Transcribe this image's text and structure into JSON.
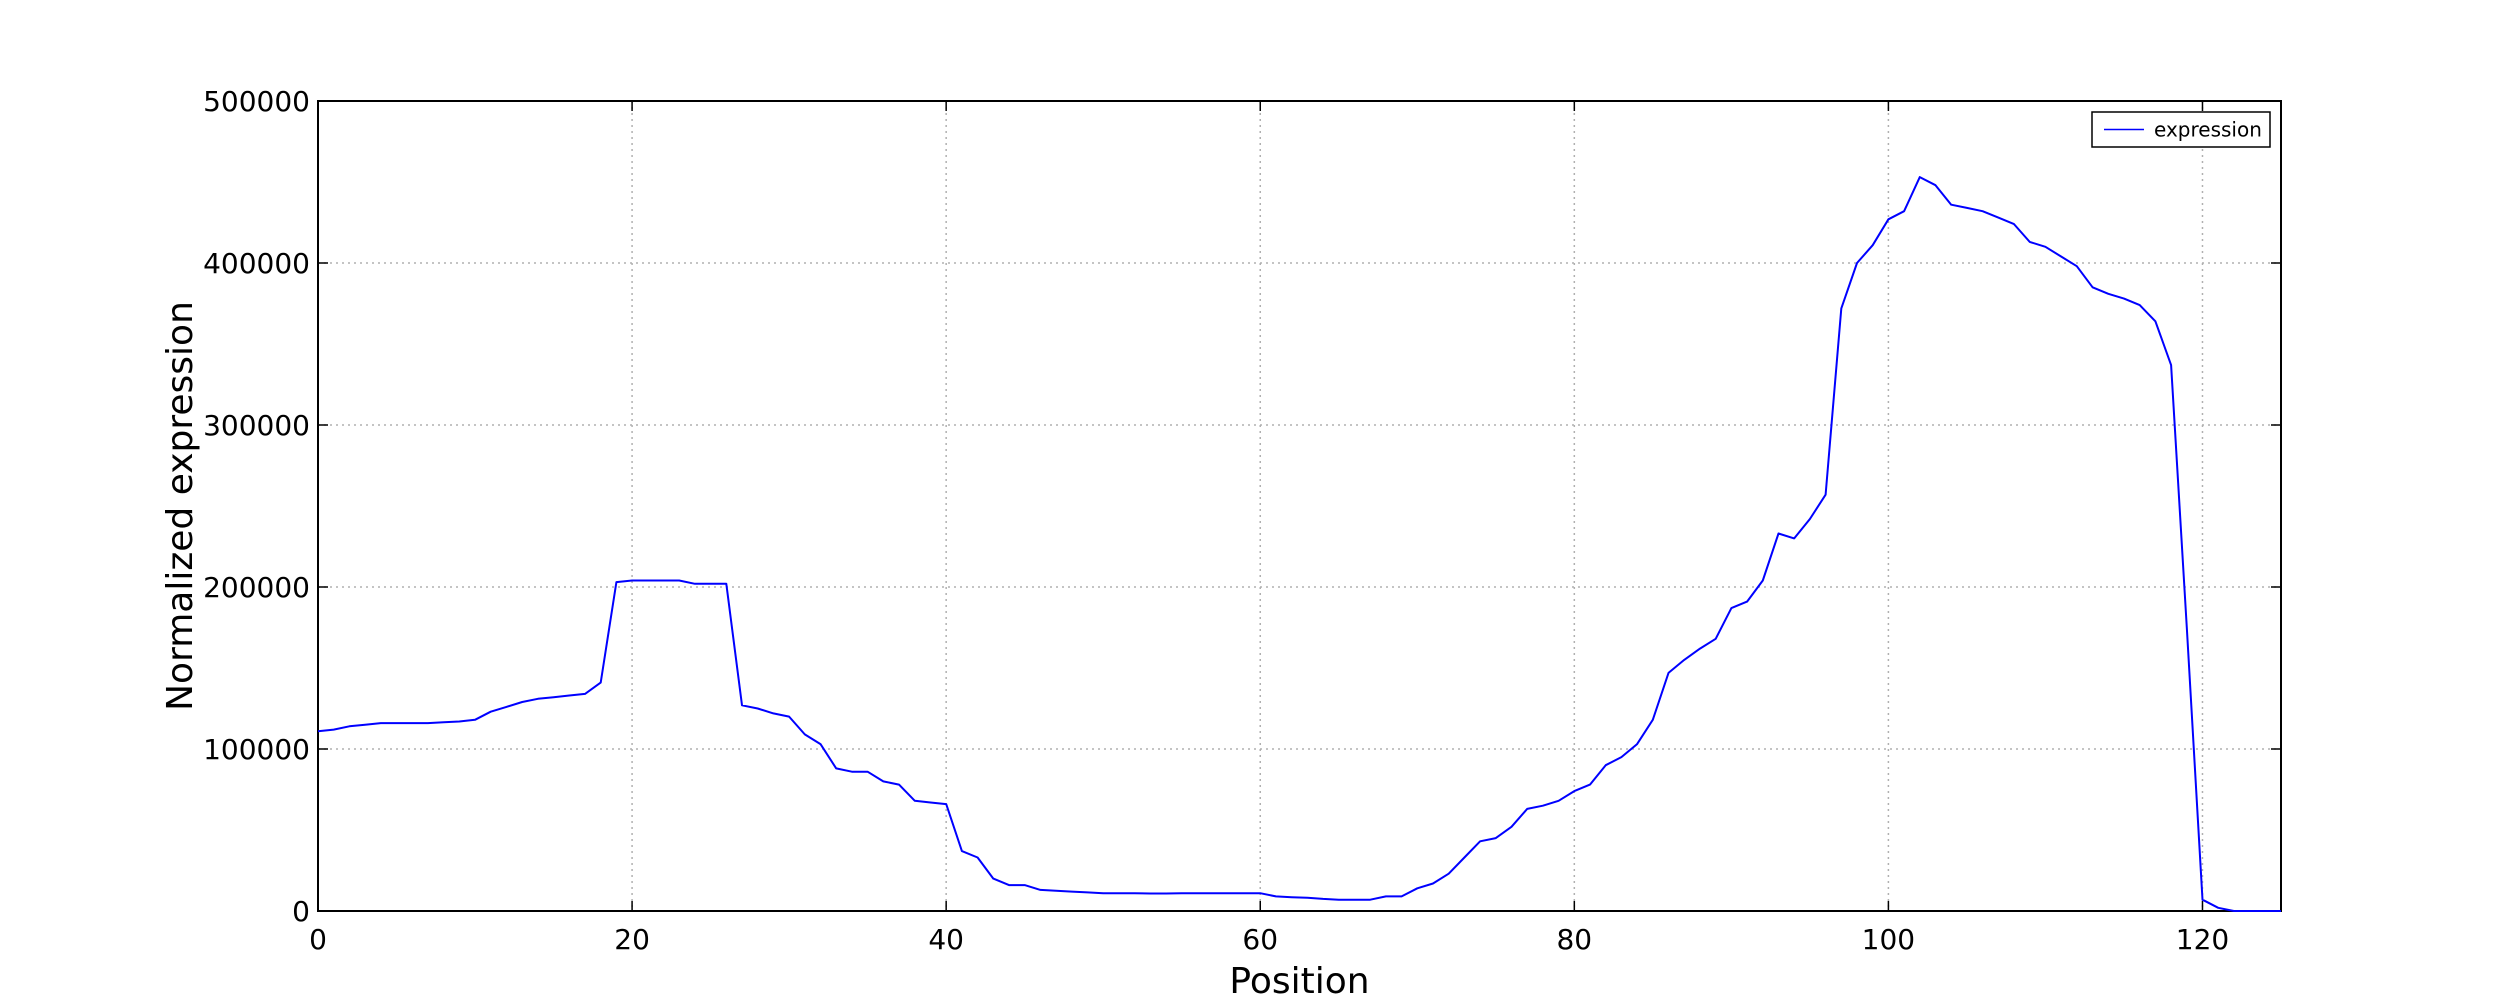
{
  "chart_data": {
    "type": "line",
    "xlabel": "Position",
    "ylabel": "Normalized expression",
    "xlim": [
      0,
      125
    ],
    "ylim": [
      0,
      500000
    ],
    "xticks": [
      0,
      20,
      40,
      60,
      80,
      100,
      120
    ],
    "yticks": [
      0,
      100000,
      200000,
      300000,
      400000,
      500000
    ],
    "grid": true,
    "legend_position": "top-right",
    "series": [
      {
        "name": "expression",
        "color": "#0000ff",
        "x": [
          0,
          1,
          2,
          3,
          4,
          5,
          6,
          7,
          8,
          9,
          10,
          11,
          12,
          13,
          14,
          15,
          16,
          17,
          18,
          19,
          20,
          21,
          22,
          23,
          24,
          25,
          26,
          27,
          28,
          29,
          30,
          31,
          32,
          33,
          34,
          35,
          36,
          37,
          38,
          39,
          40,
          41,
          42,
          43,
          44,
          45,
          46,
          47,
          48,
          49,
          50,
          51,
          52,
          53,
          54,
          55,
          56,
          57,
          58,
          59,
          60,
          61,
          62,
          63,
          64,
          65,
          66,
          67,
          68,
          69,
          70,
          71,
          72,
          73,
          74,
          75,
          76,
          77,
          78,
          79,
          80,
          81,
          82,
          83,
          84,
          85,
          86,
          87,
          88,
          89,
          90,
          91,
          92,
          93,
          94,
          95,
          96,
          97,
          98,
          99,
          100,
          101,
          102,
          103,
          104,
          105,
          106,
          107,
          108,
          109,
          110,
          111,
          112,
          113,
          114,
          115,
          116,
          117,
          118,
          119,
          120,
          121,
          122,
          123,
          124,
          125
        ],
        "y": [
          111000,
          112000,
          114000,
          115000,
          116000,
          116000,
          116000,
          116000,
          116500,
          117000,
          118000,
          123000,
          126000,
          129000,
          131000,
          132000,
          133000,
          134000,
          141000,
          203000,
          204000,
          204000,
          204000,
          204000,
          202000,
          202000,
          202000,
          127000,
          125000,
          122000,
          120000,
          109000,
          103000,
          88000,
          86000,
          86000,
          80000,
          78000,
          68000,
          67000,
          66000,
          37000,
          33000,
          20000,
          16000,
          16000,
          13000,
          12500,
          12000,
          11500,
          11000,
          11000,
          11000,
          10800,
          10800,
          11000,
          11000,
          11000,
          11000,
          11000,
          11000,
          9000,
          8500,
          8200,
          7500,
          7000,
          7000,
          7000,
          9000,
          9000,
          14000,
          17000,
          23000,
          33000,
          43000,
          45000,
          52000,
          63000,
          65000,
          68000,
          74000,
          78000,
          90000,
          95000,
          103000,
          118000,
          147000,
          155000,
          162000,
          168000,
          187000,
          191000,
          204000,
          233000,
          230000,
          242000,
          257000,
          372000,
          400000,
          411000,
          427000,
          432000,
          453000,
          448000,
          436000,
          434000,
          432000,
          428000,
          424000,
          413000,
          410000,
          404000,
          398000,
          385000,
          381000,
          378000,
          374000,
          364000,
          337000,
          175000,
          7000,
          2000,
          0,
          0,
          0,
          0
        ]
      }
    ]
  }
}
